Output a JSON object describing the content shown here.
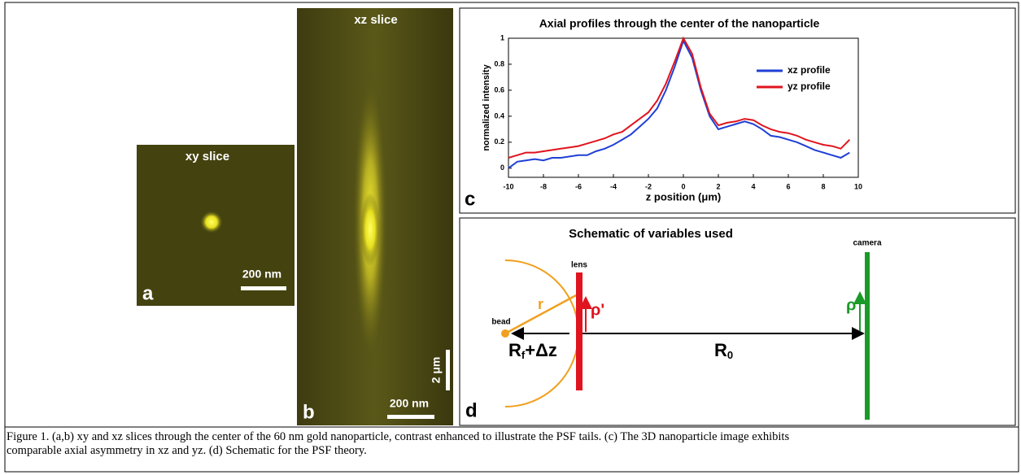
{
  "panel_a": {
    "title": "xy slice",
    "scale": "200 nm",
    "letter": "a"
  },
  "panel_b": {
    "title": "xz slice",
    "scale_z": "2 μm",
    "scale": "200 nm",
    "letter": "b"
  },
  "chart_data": {
    "type": "line",
    "title": "Axial profiles through the center of the nanoparticle",
    "x_label": "z position (μm)",
    "y_label": "normalized intensity",
    "letter": "c",
    "x": [
      -10,
      -9.5,
      -9,
      -8.5,
      -8,
      -7.5,
      -7,
      -6.5,
      -6,
      -5.5,
      -5,
      -4.5,
      -4,
      -3.5,
      -3,
      -2.5,
      -2,
      -1.5,
      -1,
      -0.5,
      0,
      0.5,
      1,
      1.5,
      2,
      2.5,
      3,
      3.5,
      4,
      4.5,
      5,
      5.5,
      6,
      6.5,
      7,
      7.5,
      8,
      8.5,
      9,
      9.5
    ],
    "series": [
      {
        "name": "xz profile",
        "color": "#1f3fd6",
        "values": [
          0.0,
          0.05,
          0.06,
          0.07,
          0.06,
          0.08,
          0.08,
          0.09,
          0.1,
          0.1,
          0.13,
          0.15,
          0.18,
          0.22,
          0.26,
          0.32,
          0.38,
          0.46,
          0.6,
          0.78,
          0.98,
          0.85,
          0.6,
          0.4,
          0.3,
          0.32,
          0.34,
          0.36,
          0.34,
          0.3,
          0.25,
          0.24,
          0.22,
          0.2,
          0.17,
          0.14,
          0.12,
          0.1,
          0.08,
          0.12
        ]
      },
      {
        "name": "yz profile",
        "color": "#e0141e",
        "values": [
          0.08,
          0.1,
          0.12,
          0.12,
          0.13,
          0.14,
          0.15,
          0.16,
          0.17,
          0.19,
          0.21,
          0.23,
          0.26,
          0.28,
          0.33,
          0.38,
          0.43,
          0.52,
          0.65,
          0.82,
          1.0,
          0.88,
          0.62,
          0.42,
          0.33,
          0.35,
          0.36,
          0.38,
          0.37,
          0.33,
          0.3,
          0.28,
          0.27,
          0.25,
          0.22,
          0.2,
          0.18,
          0.17,
          0.15,
          0.22
        ]
      }
    ],
    "xlim": [
      -10,
      10
    ],
    "xticks": [
      -10,
      -8,
      -6,
      -4,
      -2,
      0,
      2,
      4,
      6,
      8,
      10
    ],
    "ylim": [
      -0.07,
      1
    ],
    "yticks": [
      0,
      0.2,
      0.4,
      0.6,
      0.8,
      1
    ],
    "legend": "upper right"
  },
  "panel_d": {
    "title": "Schematic of variables used",
    "lens": "lens",
    "camera": "camera",
    "bead": "bead",
    "r": "r",
    "rho_prime": "ρ'",
    "rho": "ρ",
    "rf": {
      "main": "R",
      "sub": "f",
      "rest": "+Δz"
    },
    "r0": {
      "main": "R",
      "sub": "0"
    },
    "letter": "d"
  },
  "caption": "Figure 1. (a,b) xy and xz slices through the center of the 60 nm gold nanoparticle, contrast enhanced to illustrate the PSF tails. (c) The 3D nanoparticle image exhibits comparable axial asymmetry in xz and yz. (d) Schematic for the PSF theory."
}
